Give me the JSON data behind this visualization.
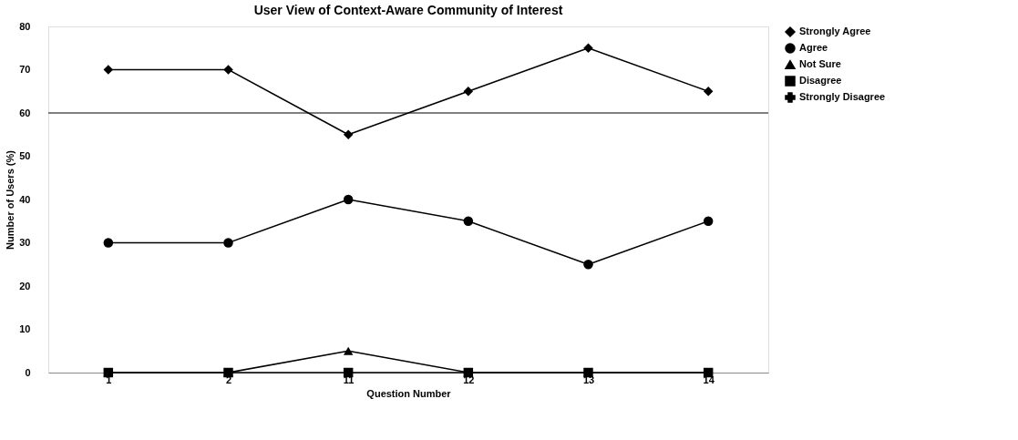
{
  "chart_data": {
    "type": "line",
    "title": "User View of Context-Aware Community of Interest",
    "xlabel": "Question Number",
    "ylabel": "Number of Users (%)",
    "categories": [
      "1",
      "2",
      "11",
      "12",
      "13",
      "14"
    ],
    "series": [
      {
        "name": "Strongly Agree",
        "color": "#000000",
        "marker": "diamond",
        "values": [
          70,
          70,
          55,
          65,
          75,
          65
        ]
      },
      {
        "name": "Agree",
        "color": "#000000",
        "marker": "circle",
        "values": [
          30,
          30,
          40,
          35,
          25,
          35
        ]
      },
      {
        "name": "Not Sure",
        "color": "#000000",
        "marker": "triangle",
        "values": [
          0,
          0,
          5,
          0,
          0,
          0
        ]
      },
      {
        "name": "Disagree",
        "color": "#000000",
        "marker": "square",
        "values": [
          0,
          0,
          0,
          0,
          0,
          0
        ]
      },
      {
        "name": "Strongly Disagree",
        "color": "#000000",
        "marker": "cross",
        "values": [
          null,
          null,
          null,
          null,
          null,
          null
        ]
      }
    ],
    "ylim": [
      0,
      80
    ],
    "yticks": [
      0,
      10,
      20,
      30,
      40,
      50,
      60,
      70,
      80
    ],
    "ref_lines": [
      {
        "axis": "y",
        "value": 60,
        "label": null,
        "color": "#000000"
      }
    ],
    "grid": false,
    "legend": "right",
    "line_style": "solid"
  }
}
